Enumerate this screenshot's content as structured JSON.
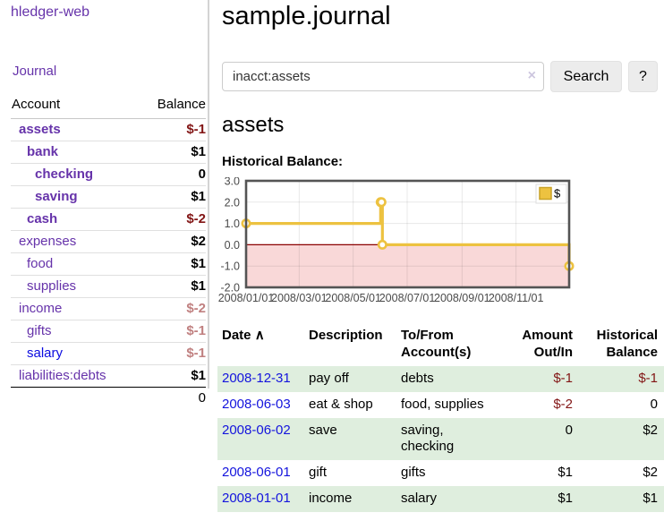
{
  "app": {
    "brand": "hledger-web"
  },
  "sidebar": {
    "nav_journal": "Journal",
    "headers": {
      "account": "Account",
      "balance": "Balance"
    },
    "accounts": [
      {
        "name": "assets",
        "balance": "$-1",
        "level": 1
      },
      {
        "name": "bank",
        "balance": "$1",
        "level": 2
      },
      {
        "name": "checking",
        "balance": "0",
        "level": 3
      },
      {
        "name": "saving",
        "balance": "$1",
        "level": 3
      },
      {
        "name": "cash",
        "balance": "$-2",
        "level": 2
      },
      {
        "name": "expenses",
        "balance": "$2",
        "level": 1
      },
      {
        "name": "food",
        "balance": "$1",
        "level": 2
      },
      {
        "name": "supplies",
        "balance": "$1",
        "level": 2
      },
      {
        "name": "income",
        "balance": "$-2",
        "level": 1
      },
      {
        "name": "gifts",
        "balance": "$-1",
        "level": 2
      },
      {
        "name": "salary",
        "balance": "$-1",
        "level": 2
      },
      {
        "name": "liabilities:debts",
        "balance": "$1",
        "level": 1
      }
    ],
    "total": "0"
  },
  "main": {
    "title": "sample.journal",
    "search": {
      "value": "inacct:assets",
      "clear_icon": "×",
      "button": "Search",
      "help": "?"
    },
    "account_heading": "assets",
    "chart_heading": "Historical Balance:"
  },
  "chart_data": {
    "type": "line",
    "title": "Historical Balance:",
    "series": [
      {
        "name": "$",
        "color": "#edc240",
        "step": true,
        "points": [
          {
            "date": "2008-01-01",
            "day": 0,
            "value": 1
          },
          {
            "date": "2008-06-01",
            "day": 152,
            "value": 2
          },
          {
            "date": "2008-06-02",
            "day": 153,
            "value": 2
          },
          {
            "date": "2008-06-03",
            "day": 154,
            "value": 0
          },
          {
            "date": "2008-12-31",
            "day": 365,
            "value": -1
          }
        ]
      }
    ],
    "x_ticks": [
      {
        "day": 0,
        "label": "2008/01/01"
      },
      {
        "day": 60,
        "label": "2008/03/01"
      },
      {
        "day": 121,
        "label": "2008/05/01"
      },
      {
        "day": 182,
        "label": "2008/07/01"
      },
      {
        "day": 244,
        "label": "2008/09/01"
      },
      {
        "day": 305,
        "label": "2008/11/01"
      }
    ],
    "y_ticks": [
      "3.0",
      "2.0",
      "1.0",
      "0.0",
      "-1.0",
      "-2.0"
    ],
    "ylim": [
      -2,
      3
    ],
    "xlim_days": [
      0,
      365
    ],
    "grid": true,
    "legend": {
      "position": "top-right",
      "label": "$"
    },
    "negative_region_color": "#f9d8d8",
    "zero_line_color": "#8b0000",
    "border_color": "#545454"
  },
  "register": {
    "headers": [
      "Date",
      "Description",
      "To/From Account(s)",
      "Amount Out/In",
      "Historical Balance"
    ],
    "sort_arrow": "∧",
    "rows": [
      {
        "date": "2008-12-31",
        "description": "pay off",
        "to_from": "debts",
        "amount": "$-1",
        "balance": "$-1"
      },
      {
        "date": "2008-06-03",
        "description": "eat & shop",
        "to_from": "food, supplies",
        "amount": "$-2",
        "balance": "0"
      },
      {
        "date": "2008-06-02",
        "description": "save",
        "to_from": "saving, checking",
        "amount": "0",
        "balance": "$2"
      },
      {
        "date": "2008-06-01",
        "description": "gift",
        "to_from": "gifts",
        "amount": "$1",
        "balance": "$2"
      },
      {
        "date": "2008-01-01",
        "description": "income",
        "to_from": "salary",
        "amount": "$1",
        "balance": "$1"
      }
    ]
  },
  "colors": {
    "accent_purple": "#6633aa",
    "link_blue": "#1414dd",
    "negative_red": "#821515",
    "negative_dim": "#c08080",
    "row_stripe_green": "#dfeede",
    "chart_gold": "#edc240",
    "chart_negative_bg": "#f9d8d8"
  }
}
